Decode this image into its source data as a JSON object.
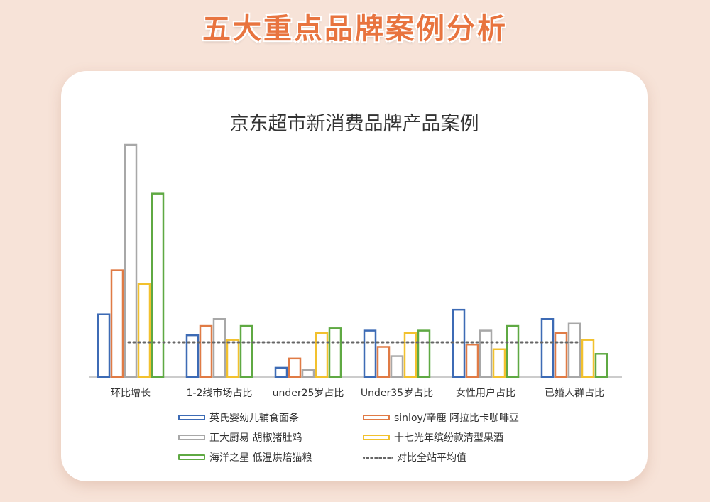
{
  "header": {
    "title": "五大重点品牌案例分析"
  },
  "chart_data": {
    "type": "bar",
    "title": "京东超市新消费品牌产品案例",
    "categories": [
      "环比增长",
      "1-2线市场占比",
      "under25岁占比",
      "Under35岁占比",
      "女性用户占比",
      "已婚人群占比"
    ],
    "ylim": [
      0,
      100
    ],
    "series": [
      {
        "name": "英氏婴幼儿辅食面条",
        "color": "#3d6bb5",
        "values": [
          27,
          18,
          4,
          20,
          29,
          25
        ]
      },
      {
        "name": "sinloy/辛鹿 阿拉比卡咖啡豆",
        "color": "#e07b45",
        "values": [
          46,
          22,
          8,
          13,
          14,
          19
        ]
      },
      {
        "name": "正大厨易 胡椒猪肚鸡",
        "color": "#a8a8a8",
        "values": [
          100,
          25,
          3,
          9,
          20,
          23
        ]
      },
      {
        "name": "十七光年缤纷款清型果酒",
        "color": "#f2c12e",
        "values": [
          40,
          16,
          19,
          19,
          12,
          16
        ]
      },
      {
        "name": "海洋之星 低温烘焙猫粮",
        "color": "#5fa943",
        "values": [
          79,
          22,
          21,
          20,
          22,
          10
        ]
      }
    ],
    "reference_line": {
      "name": "对比全站平均值",
      "value": 15,
      "color": "#666666"
    },
    "grid": false,
    "legend_position": "bottom"
  }
}
